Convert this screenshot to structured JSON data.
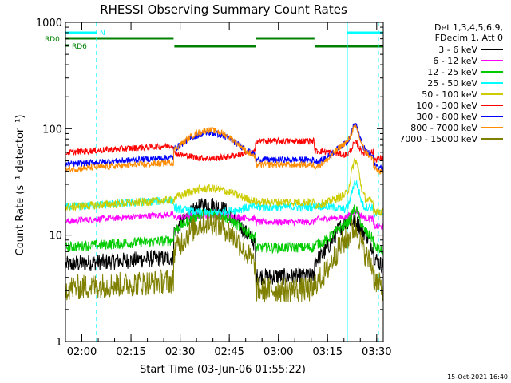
{
  "chart_data": {
    "type": "line",
    "title": "RHESSI Observing Summary Count Rates",
    "xlabel": "Start Time (03-Jun-06 01:55:22)",
    "ylabel": "Count Rate (s⁻¹ detector⁻¹)",
    "yscale": "log",
    "ylim": [
      1,
      1000
    ],
    "xlim_minutes": [
      0,
      97
    ],
    "x_ticks": [
      {
        "t": 5,
        "label": "02:00"
      },
      {
        "t": 20,
        "label": "02:15"
      },
      {
        "t": 35,
        "label": "02:30"
      },
      {
        "t": 50,
        "label": "02:45"
      },
      {
        "t": 65,
        "label": "03:00"
      },
      {
        "t": 80,
        "label": "03:15"
      },
      {
        "t": 95,
        "label": "03:30"
      }
    ],
    "y_ticks": [
      {
        "v": 1,
        "label": "1"
      },
      {
        "v": 10,
        "label": "10"
      },
      {
        "v": 100,
        "label": "100"
      },
      {
        "v": 1000,
        "label": "1000"
      }
    ],
    "legend_header": [
      "Det 1,3,4,5,6,9,",
      "FDecim 1, Att 0"
    ],
    "legend_placement": "right",
    "footer_date": "15-Oct-2021 16:40",
    "flags": [
      {
        "label": "N",
        "color": "#00ffff",
        "segments": [
          [
            0,
            9.5
          ],
          [
            86,
            97
          ]
        ]
      },
      {
        "label": "RD0",
        "color": "#008000",
        "segments": [
          [
            0,
            33
          ],
          [
            33,
            58
          ],
          [
            58,
            76
          ],
          [
            76,
            97
          ]
        ]
      },
      {
        "label": "RD6",
        "color": "#008000",
        "segments": [
          [
            0,
            1
          ]
        ]
      }
    ],
    "vlines": [
      {
        "t": 9.5,
        "style": "dashed",
        "color": "#00ffff"
      },
      {
        "t": 86,
        "style": "solid",
        "color": "#00ffff"
      },
      {
        "t": 95.5,
        "style": "dashed",
        "color": "#00ffff"
      }
    ],
    "series": [
      {
        "name": "3 - 6 keV",
        "color": "#000000",
        "base": 5.5,
        "amp": 3.5,
        "saa_level": 4.0,
        "noise": 0.08,
        "peak": 0
      },
      {
        "name": "6 - 12 keV",
        "color": "#ff00ff",
        "base": 14,
        "amp": 1.1,
        "saa_level": 13,
        "noise": 0.03,
        "peak": 0.15
      },
      {
        "name": "12 - 25 keV",
        "color": "#00cc00",
        "base": 8,
        "amp": 2.0,
        "saa_level": 7.5,
        "noise": 0.05,
        "peak": 0.4
      },
      {
        "name": "25 - 50 keV",
        "color": "#00ffff",
        "base": 19,
        "amp": 0.85,
        "saa_level": 18,
        "noise": 0.04,
        "peak": 0.8
      },
      {
        "name": "50 - 100 keV",
        "color": "#cccc00",
        "base": 19,
        "amp": 1.45,
        "saa_level": 20,
        "noise": 0.04,
        "peak": 1.1
      },
      {
        "name": "100 - 300 keV",
        "color": "#ff0000",
        "base": 62,
        "amp": 0.85,
        "saa_level": 75,
        "noise": 0.03,
        "peak": 0.3
      },
      {
        "name": "300 - 800 keV",
        "color": "#0000ff",
        "base": 48,
        "amp": 1.9,
        "saa_level": 50,
        "noise": 0.03,
        "peak": 0.5
      },
      {
        "name": "800 - 7000 keV",
        "color": "#ff8c00",
        "base": 43,
        "amp": 2.25,
        "saa_level": 45,
        "noise": 0.03,
        "peak": 0.4
      },
      {
        "name": "7000 - 15000 keV",
        "color": "#808000",
        "base": 3.3,
        "amp": 4.0,
        "saa_level": 3.0,
        "noise": 0.12,
        "peak": 0.3
      }
    ]
  }
}
